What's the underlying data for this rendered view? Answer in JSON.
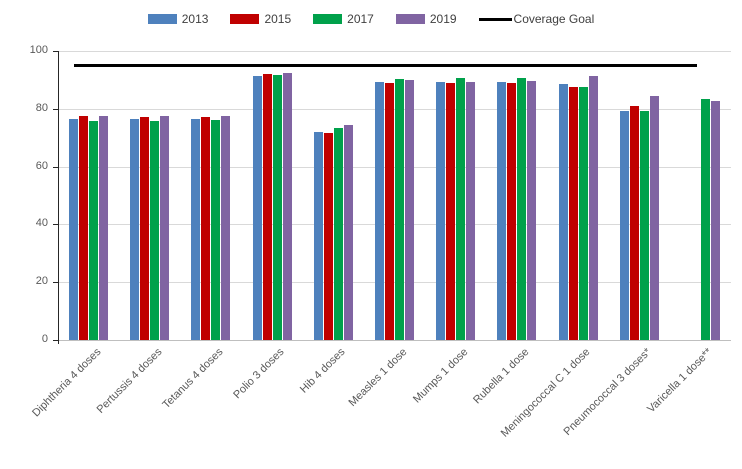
{
  "chart_data": {
    "type": "bar",
    "title": "",
    "xlabel": "",
    "ylabel": "",
    "ylim": [
      0,
      100
    ],
    "yticks": [
      0,
      20,
      40,
      60,
      80,
      100
    ],
    "grid": true,
    "legend_position": "top",
    "categories": [
      "Diphtheria 4 doses",
      "Pertussis 4 doses",
      "Tetanus 4 doses",
      "Polio 3 doses",
      "Hib 4 doses",
      "Measles 1 dose",
      "Mumps 1 dose",
      "Rubella 1 dose",
      "Meningococcal C 1 dose",
      "Pneumococcal 3 doses*",
      "Varicella 1 dose**"
    ],
    "series": [
      {
        "name": "2013",
        "color": "#4E81BD",
        "values": [
          76.3,
          76.3,
          76.3,
          91.3,
          71.9,
          89.4,
          89.4,
          89.4,
          88.5,
          79.2,
          null
        ]
      },
      {
        "name": "2015",
        "color": "#C00000",
        "values": [
          77.4,
          77.3,
          77.1,
          92.0,
          71.6,
          88.9,
          88.8,
          88.8,
          87.7,
          80.8,
          null
        ]
      },
      {
        "name": "2017",
        "color": "#00A14B",
        "values": [
          75.8,
          75.8,
          76.2,
          91.7,
          73.3,
          90.4,
          90.6,
          90.5,
          87.7,
          79.4,
          83.5
        ]
      },
      {
        "name": "2019",
        "color": "#8064A2",
        "values": [
          77.6,
          77.6,
          77.4,
          92.3,
          74.5,
          90.1,
          89.4,
          89.5,
          91.3,
          84.4,
          82.6
        ]
      }
    ],
    "goal_line": {
      "label": "Coverage Goal",
      "value": 95,
      "color": "#000000"
    }
  },
  "colors": {
    "background": "#FFFFFF",
    "gridline": "#D9D9D9",
    "axis_text": "#595959",
    "legend_text": "#404040",
    "x_axis_line": "#BFBFBF",
    "y_axis_line": "#262626"
  }
}
